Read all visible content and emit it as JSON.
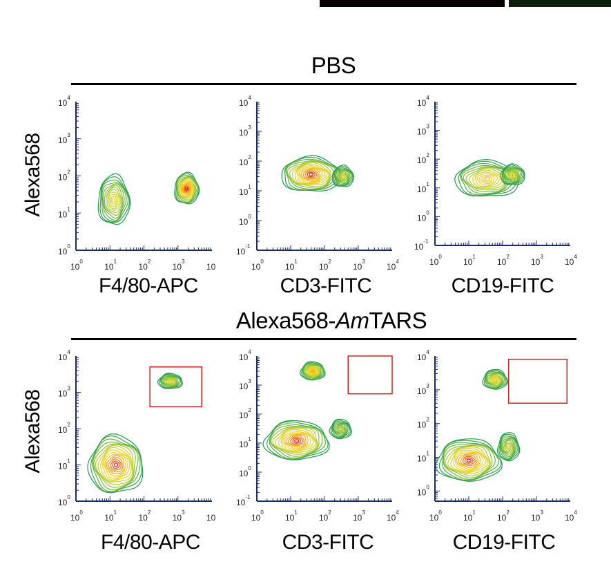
{
  "section_titles": {
    "top": "PBS",
    "bottom_prefix": "Alexa568-",
    "bottom_italic": "Am",
    "bottom_suffix": "TARS"
  },
  "y_label": "Alexa568",
  "colors": {
    "axis": "#1b2a6b",
    "gate": "#d22020",
    "contour_outer": "#1a9a4a",
    "contour_inner": "#e21a1a"
  },
  "chart_data": [
    {
      "type": "contour",
      "row": "PBS",
      "xlabel": "F4/80-APC",
      "ylabel": "Alexa568",
      "xscale": "log",
      "yscale": "log",
      "xlim": [
        1,
        10000
      ],
      "ylim": [
        1,
        10000
      ],
      "x_ticks": [
        {
          "b": "10",
          "e": "0"
        },
        {
          "b": "10",
          "e": "1"
        },
        {
          "b": "10",
          "e": "2"
        },
        {
          "b": "10",
          "e": "3"
        },
        {
          "b": "10",
          "e": ""
        }
      ],
      "y_ticks": [
        {
          "b": "10",
          "e": "0"
        },
        {
          "b": "10",
          "e": "1"
        },
        {
          "b": "10",
          "e": "2"
        },
        {
          "b": "10",
          "e": "3"
        },
        {
          "b": "10",
          "e": "4"
        }
      ],
      "populations": [
        {
          "x": 13,
          "y": 22,
          "spread_x": 0.22,
          "spread_y": 0.32,
          "peak": 0.55
        },
        {
          "x": 1800,
          "y": 45,
          "spread_x": 0.17,
          "spread_y": 0.2,
          "peak": 1.0
        }
      ],
      "gate": null
    },
    {
      "type": "contour",
      "row": "PBS",
      "xlabel": "CD3-FITC",
      "ylabel": "Alexa568",
      "xscale": "log",
      "yscale": "log",
      "xlim": [
        1,
        10000
      ],
      "ylim": [
        0.1,
        10000
      ],
      "x_ticks": [
        {
          "b": "10",
          "e": "0"
        },
        {
          "b": "10",
          "e": "1"
        },
        {
          "b": "10",
          "e": "2"
        },
        {
          "b": "10",
          "e": "3"
        },
        {
          "b": "10",
          "e": "4"
        }
      ],
      "y_ticks": [
        {
          "b": "10",
          "e": "-1"
        },
        {
          "b": "10",
          "e": "0"
        },
        {
          "b": "10",
          "e": "1"
        },
        {
          "b": "10",
          "e": "2"
        },
        {
          "b": "10",
          "e": "3"
        },
        {
          "b": "10",
          "e": "4"
        }
      ],
      "populations": [
        {
          "x": 40,
          "y": 35,
          "spread_x": 0.42,
          "spread_y": 0.28,
          "peak": 1.0
        },
        {
          "x": 350,
          "y": 30,
          "spread_x": 0.15,
          "spread_y": 0.17,
          "peak": 0.45
        }
      ],
      "gate": null
    },
    {
      "type": "contour",
      "row": "PBS",
      "xlabel": "CD19-FITC",
      "ylabel": "Alexa568",
      "xscale": "log",
      "yscale": "log",
      "xlim": [
        1,
        10000
      ],
      "ylim": [
        0.1,
        10000
      ],
      "x_ticks": [
        {
          "b": "10",
          "e": "0"
        },
        {
          "b": "10",
          "e": "1"
        },
        {
          "b": "10",
          "e": "2"
        },
        {
          "b": "10",
          "e": "3"
        },
        {
          "b": "10",
          "e": "4"
        }
      ],
      "y_ticks": [
        {
          "b": "10",
          "e": "-1"
        },
        {
          "b": "10",
          "e": "0"
        },
        {
          "b": "10",
          "e": "1"
        },
        {
          "b": "10",
          "e": "2"
        },
        {
          "b": "10",
          "e": "3"
        },
        {
          "b": "10",
          "e": "4"
        }
      ],
      "populations": [
        {
          "x": 35,
          "y": 20,
          "spread_x": 0.45,
          "spread_y": 0.3,
          "peak": 0.7
        },
        {
          "x": 200,
          "y": 28,
          "spread_x": 0.17,
          "spread_y": 0.17,
          "peak": 0.5
        }
      ],
      "gate": null
    },
    {
      "type": "contour",
      "row": "Alexa568-AmTARS",
      "xlabel": "F4/80-APC",
      "ylabel": "Alexa568",
      "xscale": "log",
      "yscale": "log",
      "xlim": [
        1,
        10000
      ],
      "ylim": [
        1,
        10000
      ],
      "x_ticks": [
        {
          "b": "10",
          "e": "0"
        },
        {
          "b": "10",
          "e": "1"
        },
        {
          "b": "10",
          "e": "2"
        },
        {
          "b": "10",
          "e": "3"
        },
        {
          "b": "10",
          "e": ""
        }
      ],
      "y_ticks": [
        {
          "b": "10",
          "e": "0"
        },
        {
          "b": "10",
          "e": "1"
        },
        {
          "b": "10",
          "e": "2"
        },
        {
          "b": "10",
          "e": "3"
        },
        {
          "b": "10",
          "e": "4"
        }
      ],
      "populations": [
        {
          "x": 15,
          "y": 10,
          "spread_x": 0.38,
          "spread_y": 0.38,
          "peak": 1.0
        },
        {
          "x": 600,
          "y": 2000,
          "spread_x": 0.17,
          "spread_y": 0.1,
          "peak": 0.5
        }
      ],
      "gate": {
        "x": [
          150,
          5000
        ],
        "y": [
          400,
          5000
        ]
      }
    },
    {
      "type": "contour",
      "row": "Alexa568-AmTARS",
      "xlabel": "CD3-FITC",
      "ylabel": "Alexa568",
      "xscale": "log",
      "yscale": "log",
      "xlim": [
        1,
        10000
      ],
      "ylim": [
        0.1,
        10000
      ],
      "x_ticks": [
        {
          "b": "10",
          "e": "0"
        },
        {
          "b": "10",
          "e": "1"
        },
        {
          "b": "10",
          "e": "2"
        },
        {
          "b": "10",
          "e": "3"
        },
        {
          "b": "10",
          "e": "4"
        }
      ],
      "y_ticks": [
        {
          "b": "10",
          "e": "-1"
        },
        {
          "b": "10",
          "e": "0"
        },
        {
          "b": "10",
          "e": "1"
        },
        {
          "b": "10",
          "e": "2"
        },
        {
          "b": "10",
          "e": "3"
        },
        {
          "b": "10",
          "e": "4"
        }
      ],
      "populations": [
        {
          "x": 15,
          "y": 12,
          "spread_x": 0.45,
          "spread_y": 0.32,
          "peak": 1.0
        },
        {
          "x": 45,
          "y": 3000,
          "spread_x": 0.17,
          "spread_y": 0.15,
          "peak": 0.75
        },
        {
          "x": 300,
          "y": 30,
          "spread_x": 0.15,
          "spread_y": 0.16,
          "peak": 0.35
        }
      ],
      "gate": {
        "x": [
          500,
          10000
        ],
        "y": [
          500,
          10000
        ]
      }
    },
    {
      "type": "contour",
      "row": "Alexa568-AmTARS",
      "xlabel": "CD19-FITC",
      "ylabel": "Alexa568",
      "xscale": "log",
      "yscale": "log",
      "xlim": [
        1,
        10000
      ],
      "ylim": [
        0.5,
        10000
      ],
      "x_ticks": [
        {
          "b": "10",
          "e": "0"
        },
        {
          "b": "10",
          "e": "1"
        },
        {
          "b": "10",
          "e": "2"
        },
        {
          "b": "10",
          "e": "3"
        },
        {
          "b": "10",
          "e": "4"
        }
      ],
      "y_ticks": [
        {
          "b": "10",
          "e": "0"
        },
        {
          "b": "10",
          "e": "1"
        },
        {
          "b": "10",
          "e": "2"
        },
        {
          "b": "10",
          "e": "3"
        },
        {
          "b": "10",
          "e": "4"
        }
      ],
      "populations": [
        {
          "x": 10,
          "y": 8,
          "spread_x": 0.45,
          "spread_y": 0.3,
          "peak": 1.0
        },
        {
          "x": 60,
          "y": 2000,
          "spread_x": 0.17,
          "spread_y": 0.14,
          "peak": 0.6
        },
        {
          "x": 150,
          "y": 20,
          "spread_x": 0.15,
          "spread_y": 0.2,
          "peak": 0.45
        }
      ],
      "gate": {
        "x": [
          150,
          8000
        ],
        "y": [
          400,
          8000
        ]
      }
    }
  ]
}
